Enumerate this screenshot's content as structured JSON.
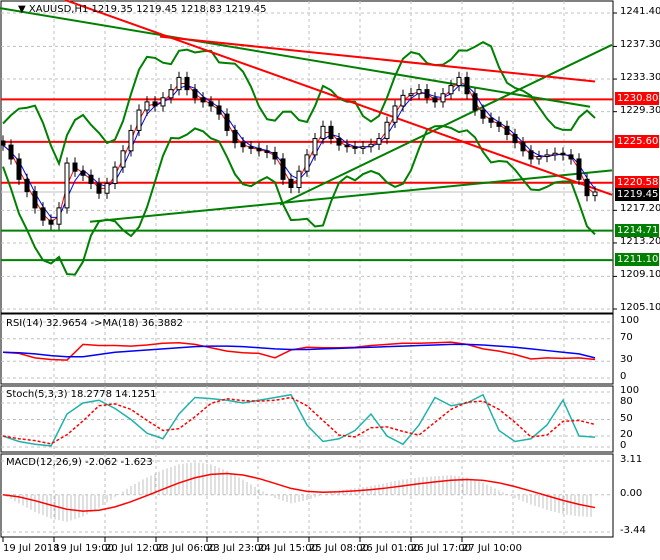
{
  "header": {
    "symbol": "XAUUSD,H1",
    "ohlc": "1219.35 1219.45 1218.83 1219.45"
  },
  "colors": {
    "bull": "#008000",
    "bear": "#ff0000",
    "level_red": "#ff0000",
    "level_green": "#008000",
    "current": "#000000",
    "rsi": "#ff0000",
    "rsi_ma": "#0000ff",
    "stoch_main": "#20b2aa",
    "stoch_signal": "#ff0000",
    "macd_hist": "#c0c0c0",
    "macd_signal": "#ff0000"
  },
  "chart_data": [
    {
      "type": "candlestick",
      "title": "XAUUSD,H1",
      "ylim": [
        1205.1,
        1241.4
      ],
      "y_ticks": [
        "1241.40",
        "1237.30",
        "1233.30",
        "1229.30",
        "1217.20",
        "1213.20",
        "1209.10",
        "1205.10"
      ],
      "x_ticks": [
        "19 Jul 2018",
        "19 Jul 19:00",
        "20 Jul 12:00",
        "23 Jul 06:00",
        "23 Jul 23:00",
        "24 Jul 15:00",
        "25 Jul 08:00",
        "26 Jul 01:00",
        "26 Jul 17:00",
        "27 Jul 10:00"
      ],
      "close": [
        1225.2,
        1223.5,
        1221,
        1219.5,
        1217.5,
        1216,
        1215.5,
        1217.5,
        1223,
        1222,
        1221.5,
        1220.5,
        1219.3,
        1220.5,
        1222.5,
        1224.5,
        1227,
        1229.5,
        1230.5,
        1230,
        1231,
        1232,
        1233.5,
        1232,
        1231,
        1230.5,
        1230,
        1229,
        1227,
        1225.5,
        1225,
        1224.8,
        1224.5,
        1224.3,
        1223.5,
        1221,
        1220,
        1222,
        1224,
        1226,
        1227.5,
        1226,
        1225.2,
        1225,
        1224.8,
        1225,
        1225.3,
        1226,
        1228,
        1230,
        1231.3,
        1231.5,
        1232,
        1231,
        1230.5,
        1231.5,
        1232.5,
        1233.5,
        1231.5,
        1229.5,
        1228.5,
        1228,
        1227.5,
        1226.5,
        1225.5,
        1224.5,
        1223.5,
        1223.8,
        1224,
        1224.2,
        1224,
        1223.5,
        1221,
        1219,
        1219.45
      ],
      "levels": [
        {
          "price": "1230.80",
          "color": "red"
        },
        {
          "price": "1225.60",
          "color": "red"
        },
        {
          "price": "1220.58",
          "color": "red"
        },
        {
          "price": "1214.71",
          "color": "green"
        },
        {
          "price": "1211.10",
          "color": "green"
        }
      ],
      "current_price": "1219.45"
    },
    {
      "type": "line",
      "title": "RSI(14) 32.9654  ->MA(18) 36.3882",
      "ylim": [
        0,
        100
      ],
      "y_ticks": [
        "100",
        "70",
        "30",
        "0"
      ],
      "series": [
        {
          "values": [
            46,
            44,
            36,
            33,
            32,
            60,
            58,
            58,
            57,
            59,
            62,
            63,
            60,
            54,
            48,
            45,
            44,
            36,
            50,
            55,
            54,
            54,
            55,
            58,
            60,
            62,
            62,
            63,
            64,
            60,
            52,
            48,
            42,
            34,
            36,
            35,
            36,
            33
          ]
        },
        {
          "values": [
            46,
            45,
            43,
            40,
            38,
            38,
            42,
            46,
            48,
            50,
            52,
            54,
            56,
            57,
            57,
            56,
            54,
            52,
            51,
            51,
            52,
            53,
            54,
            55,
            56,
            57,
            58,
            59,
            60,
            60,
            59,
            57,
            55,
            52,
            49,
            46,
            43,
            36
          ]
        }
      ]
    },
    {
      "type": "line",
      "title": "Stoch(5,3,3) 18.2778 14.1251",
      "ylim": [
        0,
        100
      ],
      "y_ticks": [
        "100",
        "80",
        "50",
        "20",
        "0"
      ],
      "series": [
        {
          "values": [
            20,
            10,
            5,
            2,
            60,
            80,
            85,
            70,
            50,
            25,
            15,
            60,
            90,
            88,
            85,
            80,
            85,
            90,
            95,
            40,
            10,
            15,
            30,
            60,
            20,
            5,
            40,
            90,
            75,
            80,
            95,
            30,
            10,
            15,
            40,
            85,
            20,
            18
          ]
        }
      ]
    },
    {
      "type": "bar",
      "title": "MACD(12,26,9) -2.062 -1.623",
      "ylim": [
        -3.44,
        3.11
      ],
      "y_ticks": [
        "3.11",
        "0.00",
        "-3.44"
      ],
      "series": [
        {
          "values": [
            0,
            -0.8,
            -1.6,
            -2.2,
            -2.5,
            -2,
            -1.2,
            -0.2,
            0.8,
            1.6,
            2.3,
            2.8,
            3,
            2.8,
            2.2,
            1.4,
            0.5,
            -0.3,
            -0.8,
            -0.5,
            0,
            0.4,
            0.6,
            0.8,
            1.1,
            1.4,
            1.6,
            1.7,
            1.8,
            1.6,
            1.1,
            0.4,
            -0.3,
            -0.9,
            -1.4,
            -1.8,
            -2.0,
            -2.06
          ]
        }
      ]
    }
  ]
}
